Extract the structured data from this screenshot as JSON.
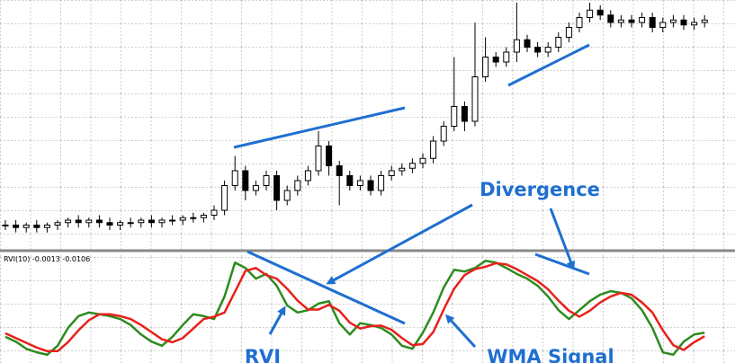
{
  "chart_data": [
    {
      "type": "candlestick",
      "ylim": [
        0,
        100
      ],
      "grid": true,
      "up_color": "#ffffff",
      "down_color": "#000000",
      "open": [
        10,
        10,
        9,
        10,
        9,
        10,
        11,
        12,
        11,
        12,
        11,
        10,
        11,
        11,
        12,
        11,
        12,
        12,
        13,
        13,
        14,
        16,
        26,
        32,
        24,
        26,
        30,
        20,
        24,
        28,
        32,
        42,
        34,
        30,
        26,
        28,
        24,
        30,
        32,
        33,
        35,
        37,
        44,
        50,
        58,
        52,
        70,
        78,
        76,
        80,
        85,
        82,
        80,
        82,
        86,
        90,
        94,
        97,
        95,
        92,
        93,
        92,
        94,
        90,
        92,
        93,
        91,
        92
      ],
      "high": [
        12,
        12,
        11,
        12,
        11,
        12,
        13,
        14,
        13,
        14,
        13,
        12,
        13,
        13,
        14,
        13,
        14,
        14,
        15,
        15,
        18,
        28,
        38,
        34,
        28,
        32,
        32,
        26,
        30,
        34,
        48,
        44,
        36,
        32,
        30,
        30,
        32,
        34,
        35,
        37,
        39,
        46,
        52,
        78,
        60,
        92,
        86,
        80,
        82,
        100,
        87,
        84,
        84,
        88,
        92,
        96,
        100,
        99,
        97,
        95,
        95,
        96,
        96,
        94,
        95,
        95,
        94,
        95
      ],
      "low": [
        8,
        7,
        7,
        7,
        7,
        8,
        9,
        9,
        9,
        9,
        8,
        8,
        9,
        9,
        9,
        9,
        10,
        10,
        11,
        11,
        12,
        14,
        24,
        20,
        22,
        24,
        16,
        18,
        22,
        26,
        30,
        30,
        18,
        24,
        24,
        22,
        22,
        28,
        30,
        31,
        33,
        35,
        42,
        48,
        48,
        50,
        68,
        74,
        74,
        76,
        80,
        78,
        78,
        80,
        84,
        88,
        92,
        93,
        90,
        90,
        90,
        90,
        88,
        88,
        90,
        89,
        89,
        90
      ],
      "close": [
        10,
        9,
        10,
        9,
        10,
        11,
        12,
        11,
        12,
        11,
        10,
        11,
        11,
        12,
        11,
        12,
        12,
        13,
        13,
        14,
        16,
        26,
        32,
        24,
        26,
        30,
        20,
        24,
        28,
        32,
        42,
        34,
        30,
        26,
        28,
        24,
        30,
        32,
        33,
        35,
        37,
        44,
        50,
        58,
        52,
        70,
        78,
        76,
        80,
        85,
        82,
        80,
        82,
        86,
        90,
        94,
        97,
        95,
        92,
        93,
        92,
        94,
        90,
        92,
        93,
        91,
        92,
        93
      ]
    },
    {
      "type": "line",
      "title": "RVI(10) -0.0013 -0.0106",
      "ylim": [
        -0.08,
        0.1
      ],
      "grid": true,
      "annotation": "Divergence",
      "series": [
        {
          "name": "RVI",
          "color": "#2e8b1e",
          "values": [
            -0.036,
            -0.044,
            -0.056,
            -0.062,
            -0.066,
            -0.051,
            -0.021,
            -0.001,
            0.005,
            0.002,
            -0.001,
            -0.006,
            -0.016,
            -0.032,
            -0.044,
            -0.051,
            -0.036,
            -0.016,
            0.002,
            -0.001,
            -0.006,
            0.032,
            0.089,
            0.08,
            0.062,
            0.07,
            0.05,
            0.017,
            0.005,
            0.009,
            0.02,
            0.024,
            -0.013,
            -0.032,
            -0.013,
            -0.016,
            -0.021,
            -0.032,
            -0.051,
            -0.056,
            -0.029,
            0.005,
            0.047,
            0.077,
            0.074,
            0.08,
            0.092,
            0.089,
            0.08,
            0.07,
            0.062,
            0.05,
            0.032,
            0.009,
            -0.006,
            0.009,
            0.024,
            0.035,
            0.041,
            0.038,
            0.029,
            0.009,
            -0.021,
            -0.062,
            -0.066,
            -0.044,
            -0.032,
            -0.029
          ]
        },
        {
          "name": "WMA Signal",
          "color": "#e8201c",
          "values": [
            -0.03,
            -0.038,
            -0.046,
            -0.054,
            -0.06,
            -0.06,
            -0.045,
            -0.025,
            -0.008,
            0.002,
            0.002,
            -0.001,
            -0.006,
            -0.016,
            -0.028,
            -0.04,
            -0.045,
            -0.038,
            -0.022,
            -0.006,
            -0.002,
            0.005,
            0.04,
            0.075,
            0.08,
            0.068,
            0.062,
            0.045,
            0.025,
            0.01,
            0.01,
            0.018,
            0.008,
            -0.012,
            -0.022,
            -0.018,
            -0.017,
            -0.024,
            -0.038,
            -0.05,
            -0.048,
            -0.028,
            0.01,
            0.045,
            0.068,
            0.078,
            0.082,
            0.088,
            0.086,
            0.078,
            0.068,
            0.058,
            0.044,
            0.025,
            0.008,
            -0.002,
            0.008,
            0.022,
            0.032,
            0.038,
            0.035,
            0.022,
            0.005,
            -0.025,
            -0.05,
            -0.058,
            -0.045,
            -0.035
          ]
        }
      ]
    }
  ]
}
